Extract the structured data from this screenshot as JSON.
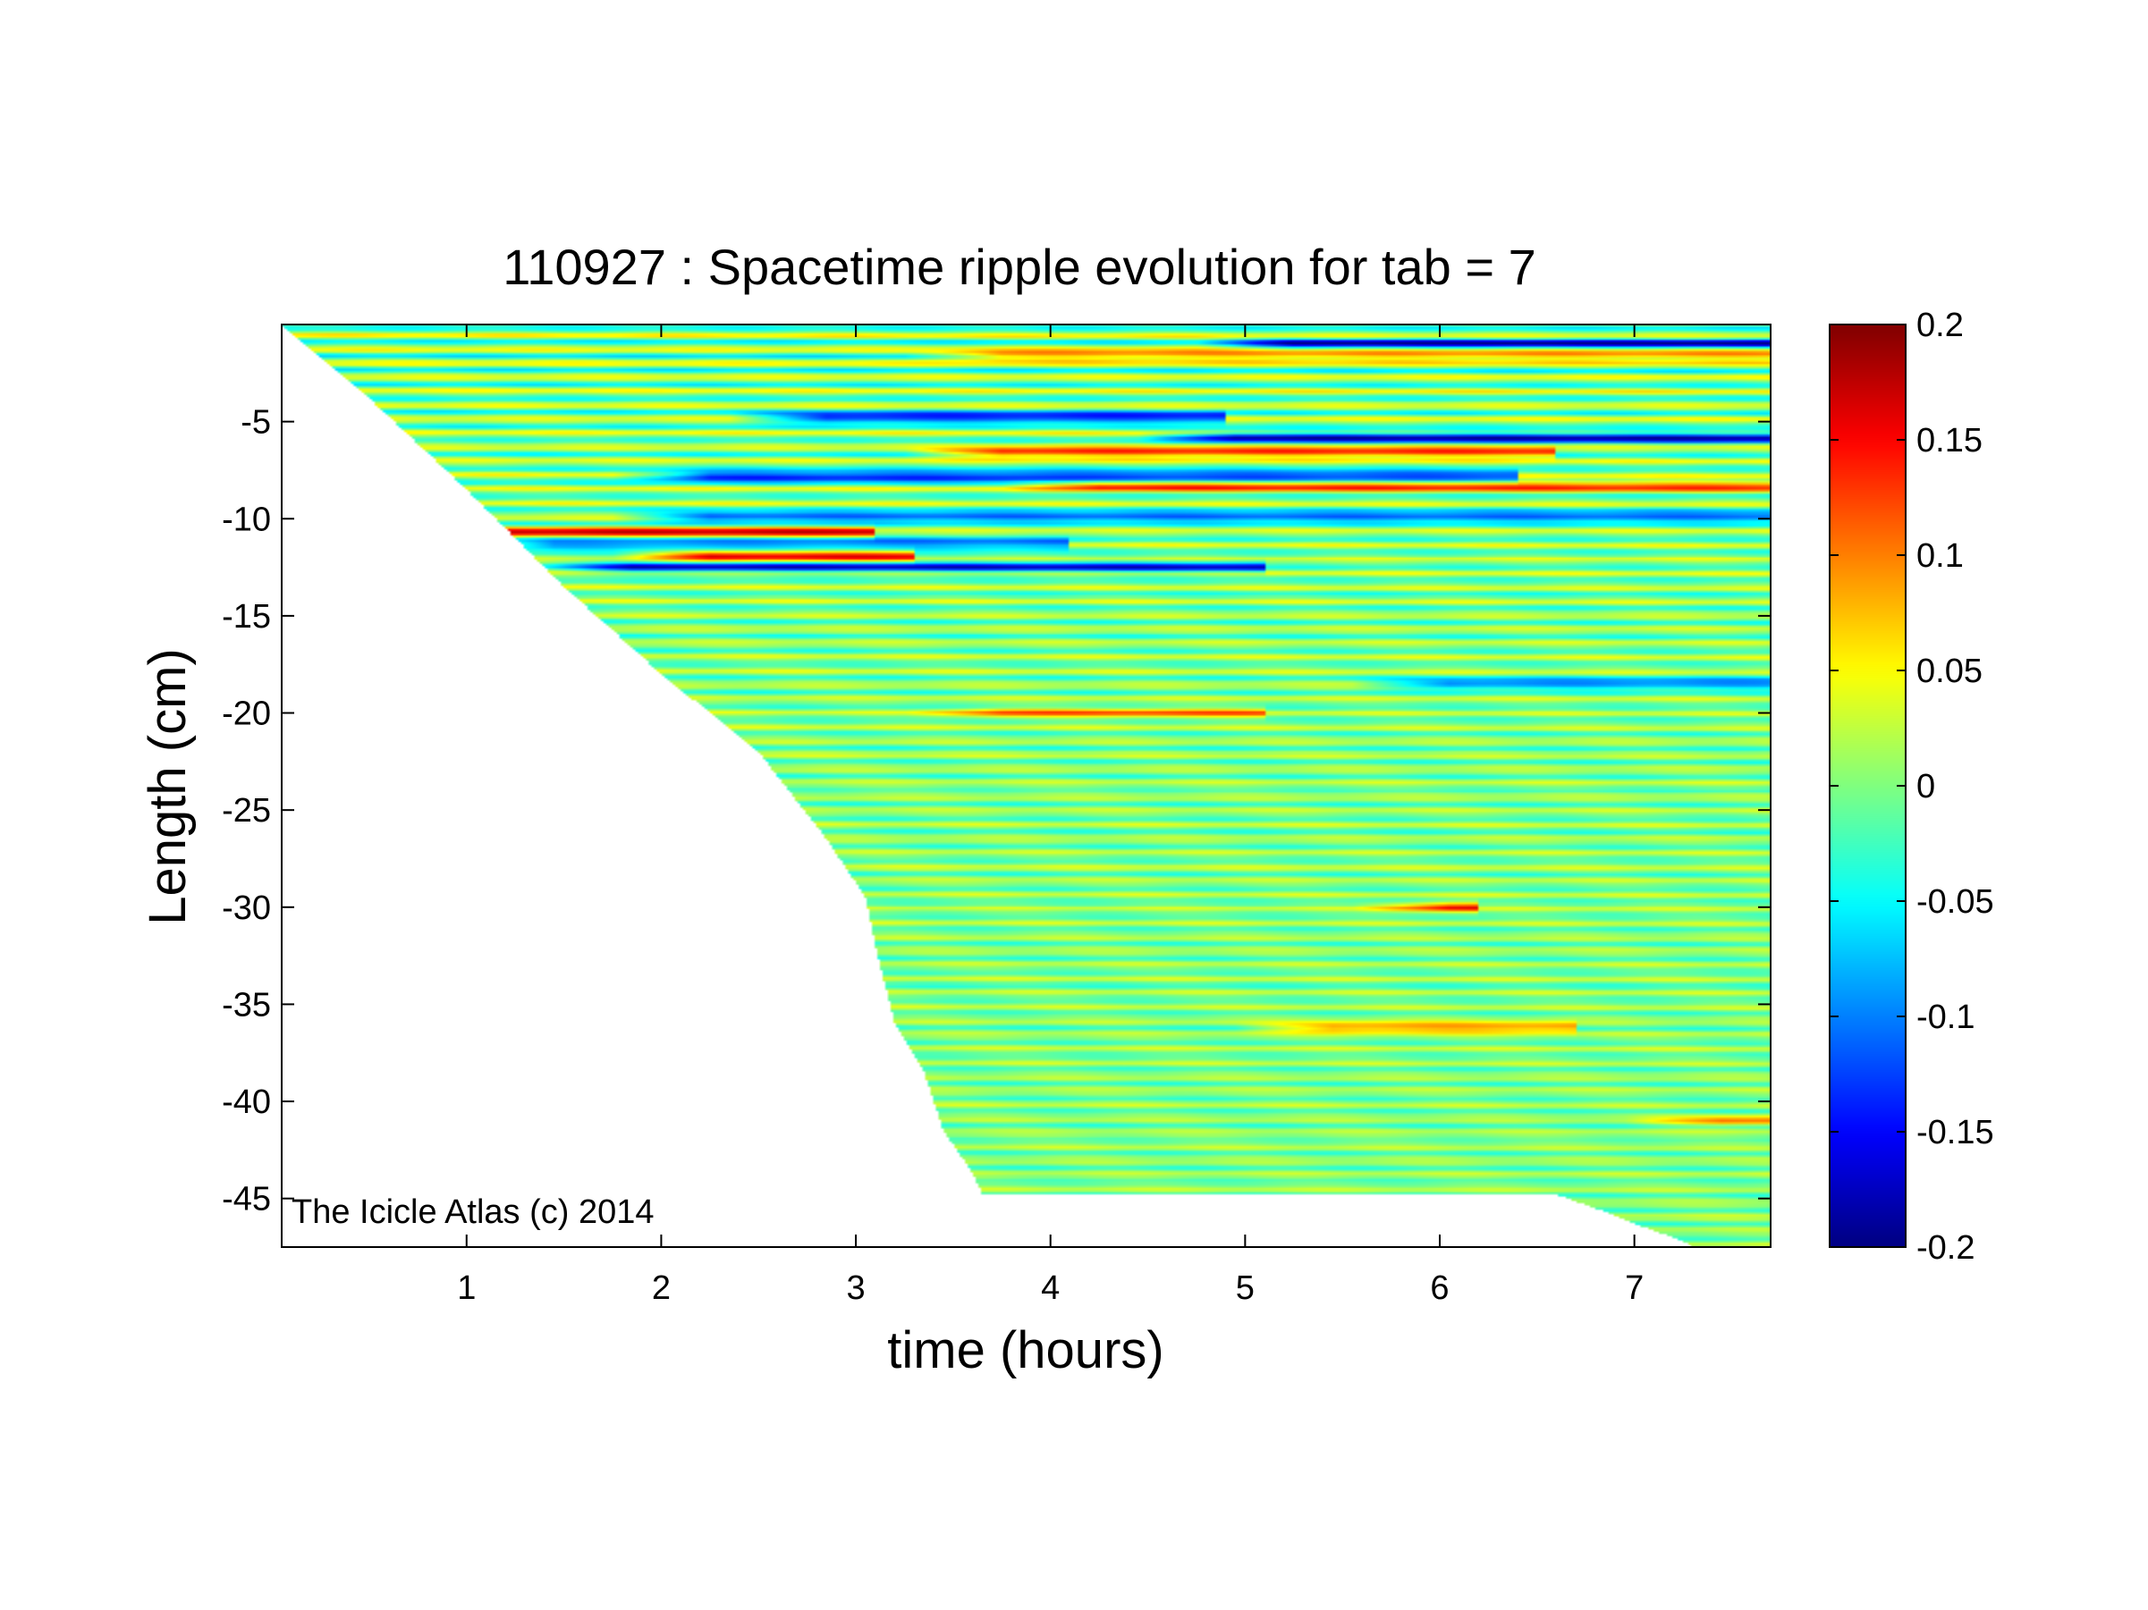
{
  "figure": {
    "title": "110927 : Spacetime ripple evolution for tab = 7",
    "watermark": "The Icicle Atlas (c) 2014"
  },
  "chart_data": {
    "type": "heatmap",
    "title": "110927 : Spacetime ripple evolution for tab = 7",
    "xlabel": "time (hours)",
    "ylabel": "Length (cm)",
    "xlim": [
      0.05,
      7.7
    ],
    "ylim": [
      -47.5,
      0
    ],
    "xticks": [
      1,
      2,
      3,
      4,
      5,
      6,
      7
    ],
    "yticks": [
      -5,
      -10,
      -15,
      -20,
      -25,
      -30,
      -35,
      -40,
      -45
    ],
    "colorbar": {
      "colormap": "jet",
      "clim": [
        -0.2,
        0.2
      ],
      "ticks": [
        0.2,
        0.15,
        0.1,
        0.05,
        0,
        -0.05,
        -0.1,
        -0.15,
        -0.2
      ],
      "tick_labels": [
        "0.2",
        "0.15",
        "0.1",
        "0.05",
        "0",
        "-0.05",
        "-0.1",
        "-0.15",
        "-0.2"
      ]
    },
    "length_boundary": {
      "description": "icicle tip length vs time; data exists above this curve",
      "t": [
        0.05,
        0.5,
        1.0,
        1.5,
        2.0,
        2.5,
        2.85,
        3.05,
        3.1,
        3.2,
        3.35,
        3.45,
        3.6,
        3.65,
        4.0,
        5.0,
        6.0,
        6.6,
        6.8,
        7.0,
        7.25,
        7.3,
        7.7
      ],
      "length": [
        0.0,
        -3.8,
        -8.5,
        -13.5,
        -18.0,
        -22.0,
        -26.5,
        -29.5,
        -32.0,
        -36.0,
        -38.5,
        -41.5,
        -43.7,
        -44.8,
        -44.8,
        -44.8,
        -44.8,
        -44.8,
        -45.5,
        -46.3,
        -47.2,
        -47.5,
        -47.5
      ]
    },
    "features": [
      {
        "kind": "positive-ridge",
        "length": -1.6,
        "t": [
          3.5,
          7.7
        ],
        "value": 0.12
      },
      {
        "kind": "negative-ridge",
        "length": -1.0,
        "t": [
          5.0,
          7.7
        ],
        "value": -0.15
      },
      {
        "kind": "negative-ridge",
        "length": -4.8,
        "t": [
          2.6,
          4.8
        ],
        "value": -0.17
      },
      {
        "kind": "negative-ridge",
        "length": -5.8,
        "t": [
          4.7,
          7.7
        ],
        "value": -0.17
      },
      {
        "kind": "positive-ridge",
        "length": -6.6,
        "t": [
          3.5,
          6.5
        ],
        "value": 0.15
      },
      {
        "kind": "negative-ridge",
        "length": -7.8,
        "t": [
          2.0,
          6.3
        ],
        "value": -0.17
      },
      {
        "kind": "positive-ridge",
        "length": -8.3,
        "t": [
          4.0,
          7.7
        ],
        "value": 0.13
      },
      {
        "kind": "negative-ridge",
        "length": -9.9,
        "t": [
          2.0,
          7.7
        ],
        "value": -0.14
      },
      {
        "kind": "positive-ridge",
        "length": -10.7,
        "t": [
          0.9,
          3.0
        ],
        "value": 0.15
      },
      {
        "kind": "negative-ridge",
        "length": -11.3,
        "t": [
          1.2,
          4.0
        ],
        "value": -0.13
      },
      {
        "kind": "positive-ridge",
        "length": -11.9,
        "t": [
          2.0,
          3.2
        ],
        "value": 0.16
      },
      {
        "kind": "negative-ridge",
        "length": -12.5,
        "t": [
          1.6,
          5.0
        ],
        "value": -0.14
      },
      {
        "kind": "negative-ridge",
        "length": -18.5,
        "t": [
          5.8,
          7.7
        ],
        "value": -0.12
      },
      {
        "kind": "positive-ridge",
        "length": -20.0,
        "t": [
          3.5,
          5.0
        ],
        "value": 0.09
      },
      {
        "kind": "positive-ridge",
        "length": -30.0,
        "t": [
          5.8,
          6.1
        ],
        "value": 0.13
      },
      {
        "kind": "positive-ridge",
        "length": -36.2,
        "t": [
          5.2,
          6.6
        ],
        "value": 0.11
      },
      {
        "kind": "positive-ridge",
        "length": -41.0,
        "t": [
          7.2,
          7.7
        ],
        "value": 0.09
      }
    ]
  }
}
